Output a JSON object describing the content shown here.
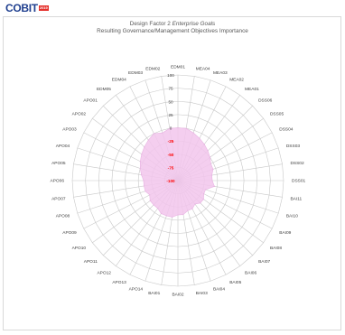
{
  "logo": {
    "text": "COBIT",
    "tag": "2019"
  },
  "header": {
    "title_prefix": "Design Factor 2 ",
    "title_emphasis": "Enterprise Goals",
    "subtitle": "Resulting Governance/Management Objectives Importance"
  },
  "colors": {
    "fill": "#f2c6ec",
    "fill_stroke": "#e8b4e2",
    "grid": "#c8c8c8",
    "axis_label": "#404040",
    "tick_positive": "#404040",
    "tick_negative": "#ff0000"
  },
  "chart_data": {
    "type": "radar",
    "title": "Design Factor 2 Enterprise Goals",
    "subtitle": "Resulting Governance/Management Objectives Importance",
    "range": [
      -100,
      100
    ],
    "ticks": [
      100,
      75,
      50,
      25,
      0,
      -25,
      -50,
      -75,
      -100
    ],
    "tick_labels": [
      "100",
      "75",
      "50",
      "25",
      "0",
      "-25",
      "-50",
      "-75",
      "-100"
    ],
    "categories": [
      "EDM01",
      "MEA04",
      "MEA03",
      "MEA02",
      "MEA01",
      "DSS06",
      "DSS05",
      "DSS04",
      "DSS03",
      "DSS02",
      "DSS01",
      "BAI11",
      "BAI10",
      "BAI09",
      "BAI08",
      "BAI07",
      "BAI06",
      "BAI05",
      "BAI04",
      "BAI03",
      "BAI02",
      "BAI01",
      "APO14",
      "APO13",
      "APO12",
      "APO11",
      "APO10",
      "APO09",
      "APO08",
      "APO07",
      "APO06",
      "APO05",
      "APO04",
      "APO03",
      "APO02",
      "APO01",
      "EDM05",
      "EDM04",
      "EDM03",
      "EDM02"
    ],
    "series": [
      {
        "values": [
          0,
          0,
          -5,
          -10,
          -15,
          -20,
          -25,
          -30,
          -30,
          -35,
          -35,
          -30,
          -45,
          -45,
          -40,
          -40,
          -45,
          -40,
          -40,
          -35,
          -35,
          -30,
          -30,
          -30,
          -35,
          -35,
          -35,
          -40,
          -35,
          -35,
          -35,
          -30,
          -25,
          -20,
          -15,
          -10,
          -5,
          0,
          -5,
          0
        ]
      }
    ]
  }
}
